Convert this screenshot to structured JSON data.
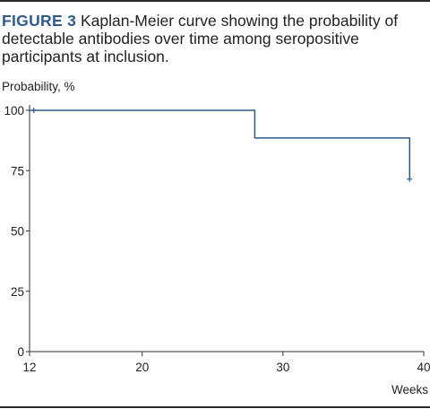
{
  "figure": {
    "label": "FIGURE 3",
    "caption": "Kaplan-Meier curve showing the probability of detectable antibodies over time among seropositive participants at inclusion."
  },
  "colors": {
    "accent": "#2c5b8c",
    "line": "#2c5b8c",
    "axis": "#333333"
  },
  "chart_data": {
    "type": "line",
    "subtype": "kaplan-meier-step",
    "ylabel": "Probability, %",
    "xlabel": "Weeks",
    "xlim": [
      12,
      40
    ],
    "ylim": [
      0,
      100
    ],
    "x_ticks": [
      12,
      20,
      30,
      40
    ],
    "y_ticks": [
      0,
      25,
      50,
      75,
      100
    ],
    "grid": false,
    "series": [
      {
        "x": [
          12,
          28,
          39
        ],
        "y": [
          100,
          88.5,
          71.5
        ],
        "censored": [
          {
            "x": 12.3,
            "y": 100
          },
          {
            "x": 39,
            "y": 71.5
          }
        ]
      }
    ]
  }
}
